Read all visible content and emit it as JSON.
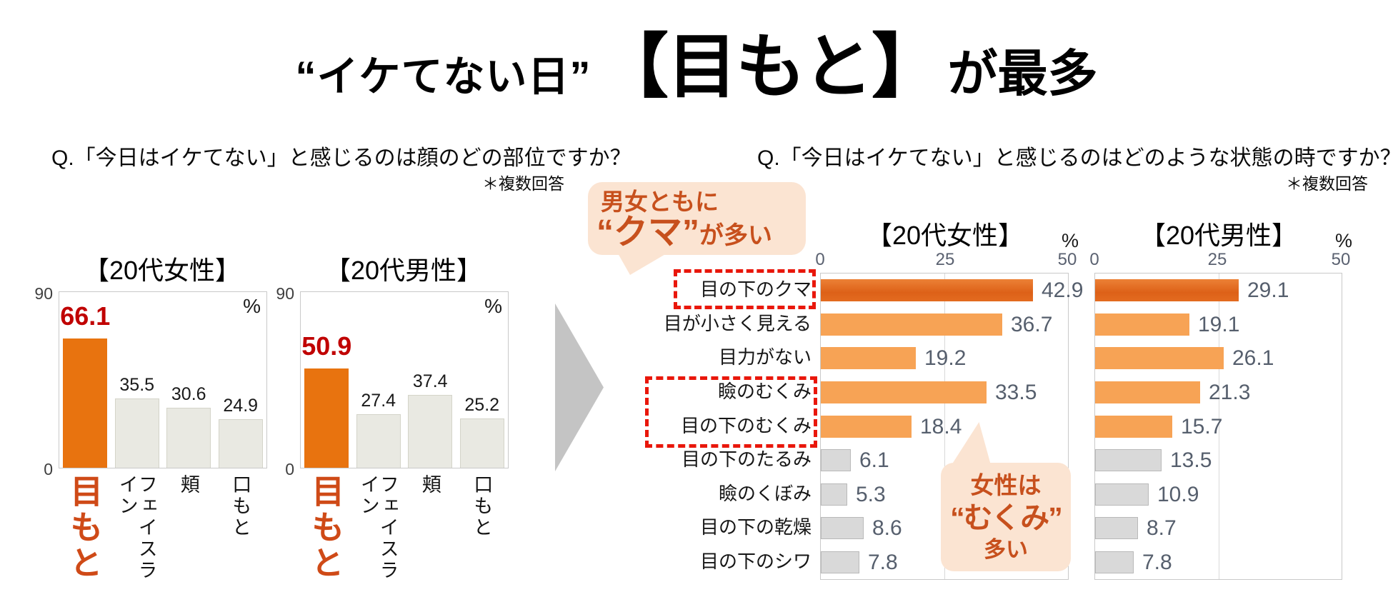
{
  "title": {
    "part1": "“イケてない日”",
    "highlight": "【目もと】",
    "suffix": "が最多"
  },
  "left_section": {
    "question": "Q.「今日はイケてない」と感じるのは顔のどの部位ですか？",
    "note": "＊複数回答"
  },
  "right_section": {
    "question": "Q.「今日はイケてない」と感じるのはどのような状態の時ですか？",
    "note": "＊複数回答"
  },
  "callouts": {
    "kuma": {
      "line1": "男女ともに",
      "big": "“クマ”",
      "rest": "が多い"
    },
    "mukumi": {
      "line1": "女性は",
      "line2": "“むくみ”",
      "line3": "多い"
    }
  },
  "colors": {
    "accent_orange": "#e8730f",
    "hbar_first_orange": "#dd6118",
    "light_orange": "#f7a355",
    "bar_gray_left": "#e9e9e2",
    "bar_gray_right": "#d9d9d9",
    "value_red": "#c00000",
    "category_orange_red": "#cf4a17",
    "callout_text": "#c7501d",
    "callout_bg": "#fbe4d2",
    "red_dashed": "#e9170b",
    "arrow_gray": "#c4c4c4",
    "axis_text_gray": "#5a6170",
    "value_text_gray": "#565f6d"
  },
  "chart_data": [
    {
      "id": "face-parts-women",
      "type": "bar",
      "title": "【20代女性】",
      "unit": "%",
      "ylim": [
        0,
        90
      ],
      "grid": false,
      "categories": [
        "目もと",
        "フェイスライン",
        "頬",
        "口もと"
      ],
      "values": [
        66.1,
        35.5,
        30.6,
        24.9
      ],
      "highlight_index": 0
    },
    {
      "id": "face-parts-men",
      "type": "bar",
      "title": "【20代男性】",
      "unit": "%",
      "ylim": [
        0,
        90
      ],
      "grid": false,
      "categories": [
        "目もと",
        "フェイスライン",
        "頬",
        "口もと"
      ],
      "values": [
        50.9,
        27.4,
        37.4,
        25.2
      ],
      "highlight_index": 0
    },
    {
      "id": "eye-states-women",
      "type": "horizontal-bar",
      "title": "【20代女性】",
      "unit": "%",
      "xlim": [
        0,
        50
      ],
      "xticks": [
        0,
        25,
        50
      ],
      "grid": true,
      "categories": [
        "目の下のクマ",
        "目が小さく見える",
        "目力がない",
        "瞼のむくみ",
        "目の下のむくみ",
        "目の下のたるみ",
        "瞼のくぼみ",
        "目の下の乾燥",
        "目の下のシワ"
      ],
      "values": [
        42.9,
        36.7,
        19.2,
        33.5,
        18.4,
        6.1,
        5.3,
        8.6,
        7.8
      ],
      "emphasis_index": 0,
      "orange_rows": [
        0,
        1,
        2,
        3,
        4
      ]
    },
    {
      "id": "eye-states-men",
      "type": "horizontal-bar",
      "title": "【20代男性】",
      "unit": "%",
      "xlim": [
        0,
        50
      ],
      "xticks": [
        0,
        25,
        50
      ],
      "grid": true,
      "categories": [
        "目の下のクマ",
        "目が小さく見える",
        "目力がない",
        "瞼のむくみ",
        "目の下のむくみ",
        "目の下のたるみ",
        "瞼のくぼみ",
        "目の下の乾燥",
        "目の下のシワ"
      ],
      "values": [
        29.1,
        19.1,
        26.1,
        21.3,
        15.7,
        13.5,
        10.9,
        8.7,
        7.8
      ],
      "emphasis_index": 0,
      "orange_rows": [
        0,
        1,
        2,
        3,
        4
      ]
    }
  ]
}
